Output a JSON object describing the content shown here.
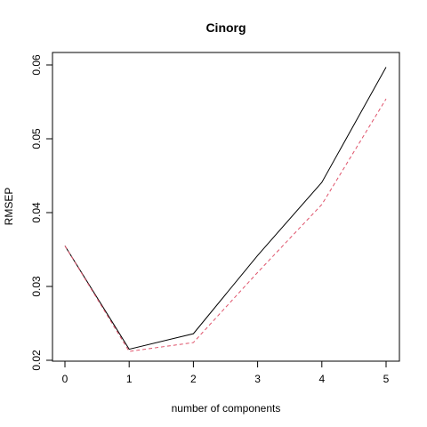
{
  "chart_data": {
    "type": "line",
    "title": "Cinorg",
    "xlabel": "number of components",
    "ylabel": "RMSEP",
    "x": [
      0,
      1,
      2,
      3,
      4,
      5
    ],
    "xlim": [
      0,
      5
    ],
    "ylim": [
      0.02,
      0.06
    ],
    "x_ticks": [
      "0",
      "1",
      "2",
      "3",
      "4",
      "5"
    ],
    "y_ticks": [
      "0.02",
      "0.03",
      "0.04",
      "0.05",
      "0.06"
    ],
    "grid": false,
    "series": [
      {
        "style": "solid",
        "color": "#000000",
        "values": [
          0.0355,
          0.0215,
          0.0236,
          0.0342,
          0.0441,
          0.0597
        ]
      },
      {
        "style": "dashed",
        "color": "#DF536B",
        "values": [
          0.0355,
          0.0212,
          0.0224,
          0.0319,
          0.0411,
          0.0554
        ]
      }
    ]
  }
}
